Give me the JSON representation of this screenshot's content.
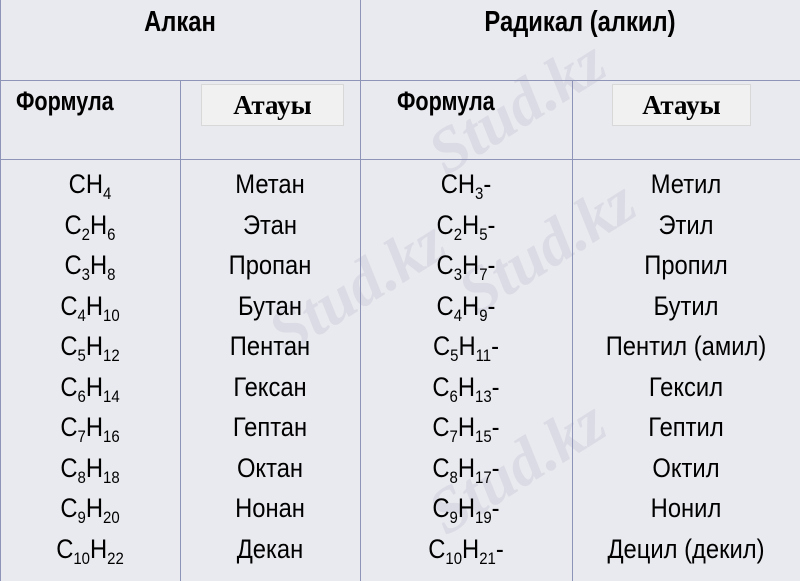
{
  "header": {
    "alkane": "Алкан",
    "radical": "Радикал (алкил)"
  },
  "subheader": {
    "formula_left": "Формула",
    "name_left": "Атауы",
    "formula_right": "Формула",
    "name_right": "Атауы"
  },
  "watermark": "Stud.kz",
  "rows": [
    {
      "alkane": {
        "c": "",
        "h": "4"
      },
      "alkane_name": "Метан",
      "radical": {
        "c": "",
        "h": "3"
      },
      "radical_name": "Метил"
    },
    {
      "alkane": {
        "c": "2",
        "h": "6"
      },
      "alkane_name": "Этан",
      "radical": {
        "c": "2",
        "h": "5"
      },
      "radical_name": "Этил"
    },
    {
      "alkane": {
        "c": "3",
        "h": "8"
      },
      "alkane_name": "Пропан",
      "radical": {
        "c": "3",
        "h": "7"
      },
      "radical_name": "Пропил"
    },
    {
      "alkane": {
        "c": "4",
        "h": "10"
      },
      "alkane_name": "Бутан",
      "radical": {
        "c": "4",
        "h": "9"
      },
      "radical_name": "Бутил"
    },
    {
      "alkane": {
        "c": "5",
        "h": "12"
      },
      "alkane_name": "Пентан",
      "radical": {
        "c": "5",
        "h": "11"
      },
      "radical_name": "Пентил (амил)"
    },
    {
      "alkane": {
        "c": "6",
        "h": "14"
      },
      "alkane_name": "Гексан",
      "radical": {
        "c": "6",
        "h": "13"
      },
      "radical_name": "Гексил"
    },
    {
      "alkane": {
        "c": "7",
        "h": "16"
      },
      "alkane_name": "Гептан",
      "radical": {
        "c": "7",
        "h": "15"
      },
      "radical_name": "Гептил"
    },
    {
      "alkane": {
        "c": "8",
        "h": "18"
      },
      "alkane_name": "Октан",
      "radical": {
        "c": "8",
        "h": "17"
      },
      "radical_name": "Октил"
    },
    {
      "alkane": {
        "c": "9",
        "h": "20"
      },
      "alkane_name": "Нонан",
      "radical": {
        "c": "9",
        "h": "19"
      },
      "radical_name": "Нонил"
    },
    {
      "alkane": {
        "c": "10",
        "h": "22"
      },
      "alkane_name": "Декан",
      "radical": {
        "c": "10",
        "h": "21"
      },
      "radical_name": "Децил (декил)"
    }
  ]
}
